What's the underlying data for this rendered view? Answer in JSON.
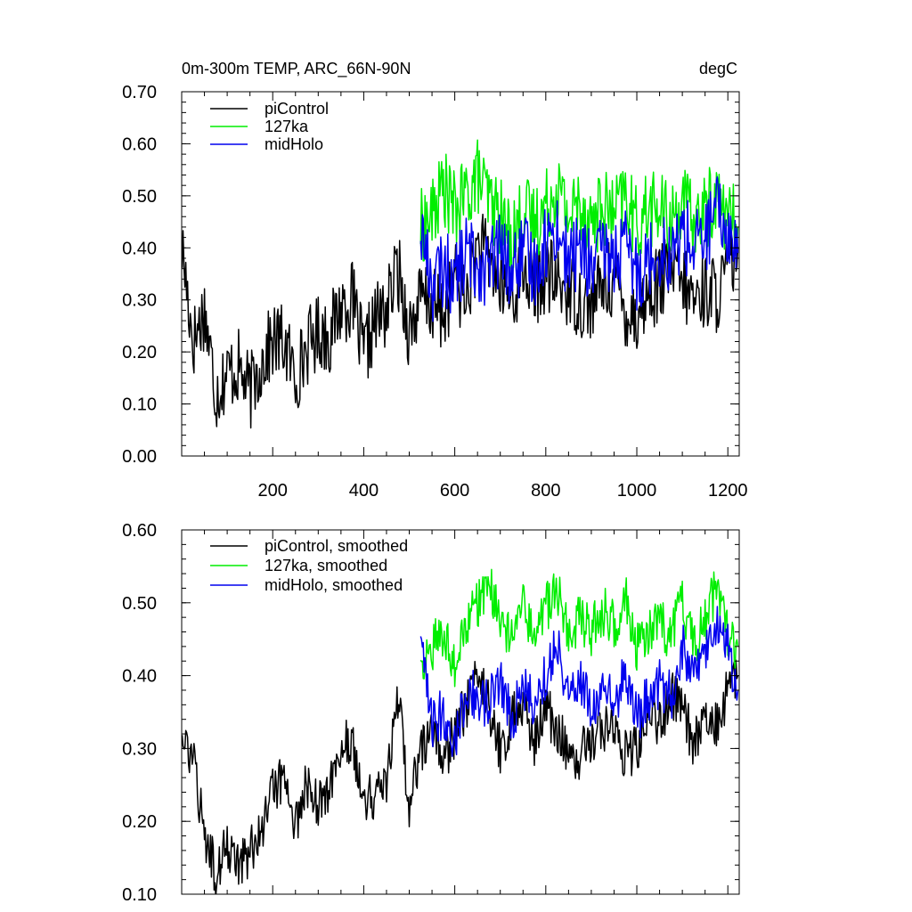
{
  "chart_data": [
    {
      "type": "line",
      "title": "0m-300m TEMP, ARC_66N-90N",
      "units": "degC",
      "xlim": [
        0,
        1225
      ],
      "ylim": [
        0.0,
        0.7
      ],
      "xticks": [
        200,
        400,
        600,
        800,
        1000,
        1200
      ],
      "xtick_labels": [
        "200",
        "400",
        "600",
        "800",
        "1000",
        "1200"
      ],
      "yticks": [
        0.0,
        0.1,
        0.2,
        0.3,
        0.4,
        0.5,
        0.6,
        0.7
      ],
      "ytick_labels": [
        "0.00",
        "0.10",
        "0.20",
        "0.30",
        "0.40",
        "0.50",
        "0.60",
        "0.70"
      ],
      "legend_position": "top-left",
      "series": [
        {
          "name": "piControl",
          "color": "#000000",
          "x": [
            1,
            25,
            50,
            75,
            100,
            125,
            150,
            175,
            200,
            225,
            250,
            275,
            300,
            325,
            350,
            375,
            400,
            425,
            450,
            475,
            500,
            525,
            550,
            575,
            600,
            625,
            650,
            675,
            700,
            725,
            750,
            775,
            800,
            825,
            850,
            875,
            900,
            925,
            950,
            975,
            1000,
            1025,
            1050,
            1075,
            1100,
            1125,
            1150,
            1175,
            1200,
            1222
          ],
          "values": [
            0.4,
            0.22,
            0.28,
            0.12,
            0.16,
            0.17,
            0.12,
            0.18,
            0.22,
            0.22,
            0.15,
            0.21,
            0.24,
            0.23,
            0.29,
            0.3,
            0.19,
            0.26,
            0.28,
            0.36,
            0.24,
            0.3,
            0.29,
            0.27,
            0.34,
            0.3,
            0.4,
            0.38,
            0.33,
            0.3,
            0.36,
            0.32,
            0.35,
            0.33,
            0.32,
            0.3,
            0.29,
            0.33,
            0.34,
            0.28,
            0.27,
            0.31,
            0.33,
            0.36,
            0.33,
            0.3,
            0.32,
            0.31,
            0.35,
            0.4
          ]
        },
        {
          "name": "127ka",
          "color": "#00ee00",
          "x": [
            525,
            550,
            575,
            600,
            625,
            650,
            675,
            700,
            725,
            750,
            775,
            800,
            825,
            850,
            875,
            900,
            925,
            950,
            975,
            1000,
            1025,
            1050,
            1075,
            1100,
            1125,
            1150,
            1175,
            1200,
            1222
          ],
          "values": [
            0.44,
            0.46,
            0.52,
            0.47,
            0.5,
            0.54,
            0.49,
            0.46,
            0.42,
            0.47,
            0.45,
            0.48,
            0.52,
            0.46,
            0.49,
            0.45,
            0.48,
            0.46,
            0.5,
            0.44,
            0.48,
            0.47,
            0.45,
            0.49,
            0.45,
            0.47,
            0.5,
            0.46,
            0.44
          ]
        },
        {
          "name": "midHolo",
          "color": "#0000ee",
          "x": [
            525,
            550,
            575,
            600,
            625,
            650,
            675,
            700,
            725,
            750,
            775,
            800,
            825,
            850,
            875,
            900,
            925,
            950,
            975,
            1000,
            1025,
            1050,
            1075,
            1100,
            1125,
            1150,
            1175,
            1200,
            1222
          ],
          "values": [
            0.44,
            0.33,
            0.36,
            0.34,
            0.39,
            0.37,
            0.36,
            0.4,
            0.35,
            0.39,
            0.36,
            0.41,
            0.44,
            0.37,
            0.4,
            0.36,
            0.39,
            0.38,
            0.4,
            0.35,
            0.38,
            0.4,
            0.38,
            0.43,
            0.4,
            0.42,
            0.47,
            0.43,
            0.39
          ]
        }
      ]
    },
    {
      "type": "line",
      "title": "",
      "xlim": [
        0,
        1225
      ],
      "ylim": [
        0.1,
        0.6
      ],
      "xticks": [
        200,
        400,
        600,
        800,
        1000,
        1200
      ],
      "xtick_labels": [],
      "yticks": [
        0.1,
        0.2,
        0.3,
        0.4,
        0.5,
        0.6
      ],
      "ytick_labels": [
        "0.10",
        "0.20",
        "0.30",
        "0.40",
        "0.50",
        "0.60"
      ],
      "legend_position": "top-left",
      "series": [
        {
          "name": "piControl, smoothed",
          "color": "#000000",
          "x": [
            1,
            25,
            50,
            75,
            100,
            125,
            150,
            175,
            200,
            225,
            250,
            275,
            300,
            325,
            350,
            375,
            400,
            425,
            450,
            475,
            500,
            525,
            550,
            575,
            600,
            625,
            650,
            675,
            700,
            725,
            750,
            775,
            800,
            825,
            850,
            875,
            900,
            925,
            950,
            975,
            1000,
            1025,
            1050,
            1075,
            1100,
            1125,
            1150,
            1175,
            1200,
            1222
          ],
          "values": [
            0.31,
            0.28,
            0.18,
            0.13,
            0.17,
            0.14,
            0.16,
            0.19,
            0.24,
            0.26,
            0.2,
            0.25,
            0.22,
            0.24,
            0.3,
            0.32,
            0.22,
            0.24,
            0.26,
            0.37,
            0.22,
            0.3,
            0.33,
            0.28,
            0.32,
            0.36,
            0.41,
            0.36,
            0.3,
            0.34,
            0.36,
            0.31,
            0.36,
            0.32,
            0.3,
            0.29,
            0.31,
            0.33,
            0.32,
            0.29,
            0.3,
            0.34,
            0.33,
            0.38,
            0.35,
            0.31,
            0.34,
            0.33,
            0.38,
            0.4
          ]
        },
        {
          "name": "127ka, smoothed",
          "color": "#00ee00",
          "x": [
            525,
            550,
            575,
            600,
            625,
            650,
            675,
            700,
            725,
            750,
            775,
            800,
            825,
            850,
            875,
            900,
            925,
            950,
            975,
            1000,
            1025,
            1050,
            1075,
            1100,
            1125,
            1150,
            1175,
            1200,
            1222
          ],
          "values": [
            0.41,
            0.44,
            0.46,
            0.42,
            0.47,
            0.5,
            0.52,
            0.48,
            0.45,
            0.49,
            0.46,
            0.49,
            0.52,
            0.46,
            0.48,
            0.46,
            0.49,
            0.47,
            0.51,
            0.44,
            0.46,
            0.48,
            0.45,
            0.5,
            0.44,
            0.48,
            0.52,
            0.45,
            0.44
          ]
        },
        {
          "name": "midHolo, smoothed",
          "color": "#0000ee",
          "x": [
            525,
            550,
            575,
            600,
            625,
            650,
            675,
            700,
            725,
            750,
            775,
            800,
            825,
            850,
            875,
            900,
            925,
            950,
            975,
            1000,
            1025,
            1050,
            1075,
            1100,
            1125,
            1150,
            1175,
            1200,
            1222
          ],
          "values": [
            0.44,
            0.33,
            0.35,
            0.31,
            0.38,
            0.37,
            0.36,
            0.4,
            0.34,
            0.38,
            0.36,
            0.4,
            0.45,
            0.37,
            0.4,
            0.35,
            0.38,
            0.36,
            0.4,
            0.34,
            0.37,
            0.39,
            0.37,
            0.44,
            0.4,
            0.43,
            0.47,
            0.44,
            0.38
          ]
        }
      ]
    }
  ]
}
